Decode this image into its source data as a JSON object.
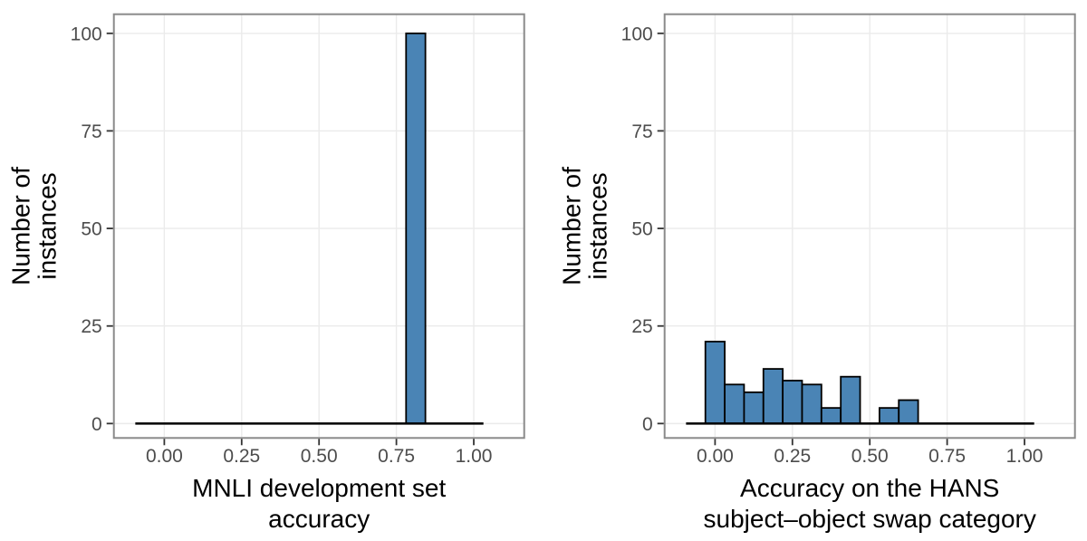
{
  "figure": {
    "background": "#ffffff",
    "description": "Two side-by-side histograms of 100 fine-tuned model instances"
  },
  "colors": {
    "bar_fill": "#4a84b5",
    "bar_stroke": "#000000",
    "grid": "#ebebeb",
    "panel_border": "#8a8a8a",
    "tick_mark": "#333333",
    "tick_label": "#4d4d4d",
    "axis_title": "#000000",
    "zero_baseline": "#000000"
  },
  "chart_data": [
    {
      "type": "bar",
      "variant": "histogram",
      "title": "",
      "xlabel": "MNLI development set accuracy",
      "xlabel_lines": [
        "MNLI development set",
        "accuracy"
      ],
      "ylabel": "Number of instances",
      "ylabel_lines": [
        "Number of",
        "instances"
      ],
      "x_tick_values": [
        0,
        0.25,
        0.5,
        0.75,
        1.0
      ],
      "x_tick_labels": [
        "0.00",
        "0.25",
        "0.50",
        "0.75",
        "1.00"
      ],
      "y_tick_values": [
        0,
        25,
        50,
        75,
        100
      ],
      "y_tick_labels": [
        "0",
        "25",
        "50",
        "75",
        "100"
      ],
      "xlim": [
        -0.163,
        1.163
      ],
      "ylim": [
        -3.7,
        104.9
      ],
      "grid": "major-only",
      "legend": "none",
      "bin_width": 0.0625,
      "bins": [
        {
          "center": 0.8125,
          "count": 100
        }
      ],
      "zero_line_range": [
        -0.09375,
        1.03125
      ]
    },
    {
      "type": "bar",
      "variant": "histogram",
      "title": "",
      "xlabel": "Accuracy on the HANS subject–object swap category",
      "xlabel_lines": [
        "Accuracy on the HANS",
        "subject–object swap category"
      ],
      "ylabel": "Number of instances",
      "ylabel_lines": [
        "Number of",
        "instances"
      ],
      "x_tick_values": [
        0,
        0.25,
        0.5,
        0.75,
        1.0
      ],
      "x_tick_labels": [
        "0.00",
        "0.25",
        "0.50",
        "0.75",
        "1.00"
      ],
      "y_tick_values": [
        0,
        25,
        50,
        75,
        100
      ],
      "y_tick_labels": [
        "0",
        "25",
        "50",
        "75",
        "100"
      ],
      "xlim": [
        -0.163,
        1.163
      ],
      "ylim": [
        -3.7,
        104.9
      ],
      "grid": "major-only",
      "legend": "none",
      "bin_width": 0.0625,
      "bins": [
        {
          "center": 0.0,
          "count": 21
        },
        {
          "center": 0.0625,
          "count": 10
        },
        {
          "center": 0.125,
          "count": 8
        },
        {
          "center": 0.1875,
          "count": 14
        },
        {
          "center": 0.25,
          "count": 11
        },
        {
          "center": 0.3125,
          "count": 10
        },
        {
          "center": 0.375,
          "count": 4
        },
        {
          "center": 0.4375,
          "count": 12
        },
        {
          "center": 0.5,
          "count": 0
        },
        {
          "center": 0.5625,
          "count": 4
        },
        {
          "center": 0.625,
          "count": 6
        }
      ],
      "zero_line_range": [
        -0.09375,
        1.03125
      ]
    }
  ]
}
